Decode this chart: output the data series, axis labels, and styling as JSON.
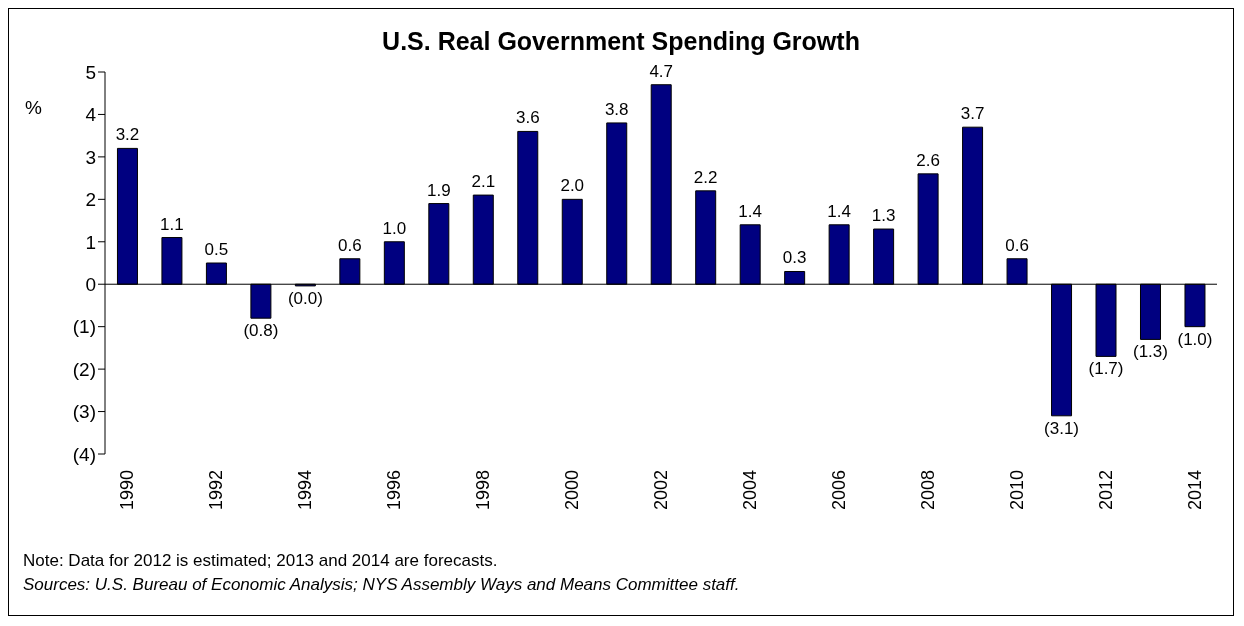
{
  "chart_data": {
    "type": "bar",
    "title": "U.S. Real Government Spending Growth",
    "ylabel": "%",
    "categories": [
      "1990",
      null,
      "1992",
      null,
      "1994",
      null,
      "1996",
      null,
      "1998",
      null,
      "2000",
      null,
      "2002",
      null,
      "2004",
      null,
      "2006",
      null,
      "2008",
      null,
      "2010",
      null,
      "2012",
      null,
      "2014"
    ],
    "values": [
      3.2,
      1.1,
      0.5,
      -0.8,
      -0.04,
      0.6,
      1.0,
      1.9,
      2.1,
      3.6,
      2.0,
      3.8,
      4.7,
      2.2,
      1.4,
      0.3,
      1.4,
      1.3,
      2.6,
      3.7,
      0.6,
      -3.1,
      -1.7,
      -1.3,
      -1.0
    ],
    "value_labels": [
      "3.2",
      "1.1",
      "0.5",
      "(0.8)",
      "(0.0)",
      "0.6",
      "1.0",
      "1.9",
      "2.1",
      "3.6",
      "2.0",
      "3.8",
      "4.7",
      "2.2",
      "1.4",
      "0.3",
      "1.4",
      "1.3",
      "2.6",
      "3.7",
      "0.6",
      "(3.1)",
      "(1.7)",
      "(1.3)",
      "(1.0)"
    ],
    "color": "#000080",
    "ylim": [
      -4,
      5
    ],
    "yticks": [
      {
        "value": -4,
        "label": "(4)"
      },
      {
        "value": -3,
        "label": "(3)"
      },
      {
        "value": -2,
        "label": "(2)"
      },
      {
        "value": -1,
        "label": "(1)"
      },
      0,
      1,
      2,
      3,
      4,
      5
    ],
    "ref_lines": [
      {
        "axis": "y",
        "value": 0,
        "color": "#000000"
      }
    ],
    "legend": false,
    "annotations": [
      "Note: Data for 2012 is estimated; 2013 and 2014 are forecasts.",
      "Sources: U.S. Bureau of Economic Analysis; NYS Assembly Ways and Means Committee staff."
    ]
  }
}
